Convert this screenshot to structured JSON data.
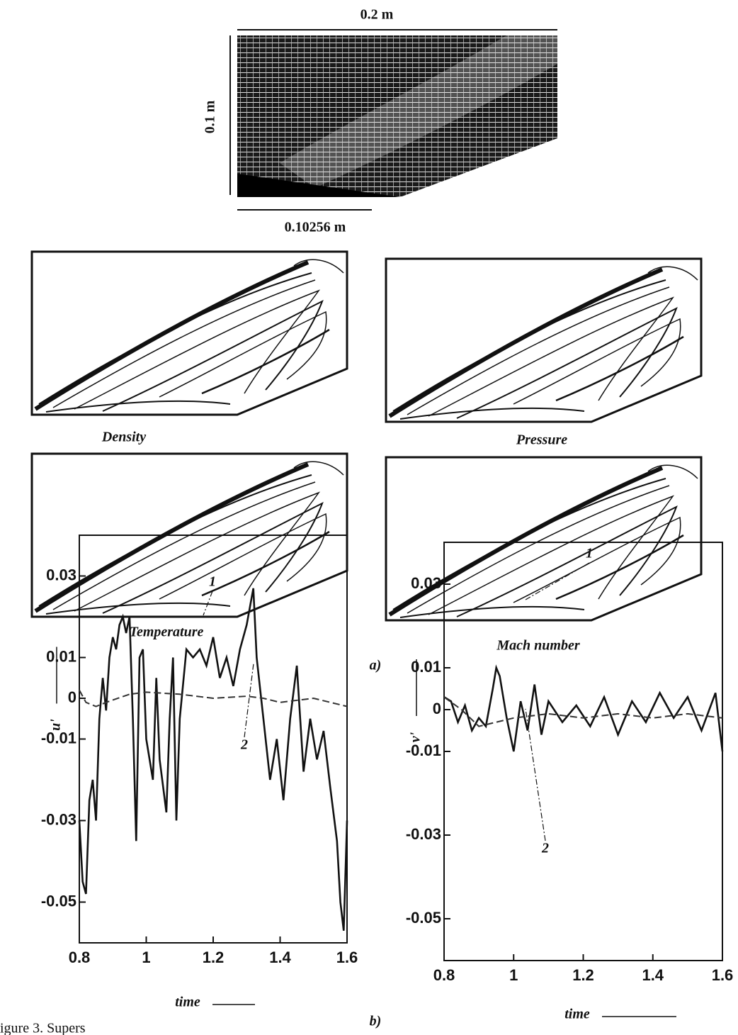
{
  "figure": {
    "mesh_labels": [
      "0.2 m",
      "0.1 m",
      "0.10256 m"
    ],
    "panels": [
      "Density",
      "Pressure",
      "Temperature",
      "Mach number"
    ],
    "part_labels": [
      "a)",
      "b)"
    ],
    "caption": "igure 3.  Supers"
  },
  "chart_data": [
    {
      "type": "line",
      "ylabel": "u'",
      "xlabel": "time",
      "xlim": [
        0.8,
        1.6
      ],
      "xticks": [
        0.8,
        1,
        1.2,
        1.4,
        1.6
      ],
      "ylim": [
        -0.06,
        0.04
      ],
      "yticks": [
        0.03,
        0.01,
        0,
        -0.01,
        -0.03,
        -0.05
      ],
      "annotations": [
        "1",
        "2"
      ],
      "series": [
        {
          "color": "#111111",
          "x": [
            0.8,
            0.81,
            0.82,
            0.83,
            0.84,
            0.85,
            0.86,
            0.87,
            0.88,
            0.89,
            0.9,
            0.91,
            0.92,
            0.93,
            0.94,
            0.95,
            0.96,
            0.97,
            0.98,
            0.99,
            1.0,
            1.02,
            1.03,
            1.04,
            1.06,
            1.07,
            1.08,
            1.09,
            1.1,
            1.12,
            1.14,
            1.16,
            1.18,
            1.2,
            1.22,
            1.24,
            1.26,
            1.28,
            1.3,
            1.32,
            1.33,
            1.35,
            1.37,
            1.39,
            1.41,
            1.43,
            1.45,
            1.47,
            1.49,
            1.51,
            1.53,
            1.55,
            1.57,
            1.58,
            1.59,
            1.6
          ],
          "values": [
            -0.03,
            -0.045,
            -0.048,
            -0.025,
            -0.02,
            -0.03,
            -0.005,
            0.005,
            -0.003,
            0.01,
            0.015,
            0.012,
            0.018,
            0.02,
            0.016,
            0.02,
            -0.005,
            -0.035,
            0.01,
            0.012,
            -0.01,
            -0.02,
            0.005,
            -0.015,
            -0.028,
            -0.005,
            0.01,
            -0.03,
            -0.005,
            0.012,
            0.01,
            0.012,
            0.008,
            0.015,
            0.005,
            0.01,
            0.003,
            0.012,
            0.018,
            0.027,
            0.01,
            -0.005,
            -0.02,
            -0.01,
            -0.025,
            -0.005,
            0.008,
            -0.018,
            -0.005,
            -0.015,
            -0.008,
            -0.022,
            -0.035,
            -0.05,
            -0.057,
            -0.03
          ]
        },
        {
          "color": "#333333",
          "x": [
            0.8,
            0.82,
            0.85,
            0.88,
            0.95,
            1.0,
            1.1,
            1.2,
            1.3,
            1.35,
            1.4,
            1.5,
            1.6
          ],
          "values": [
            0.002,
            -0.001,
            -0.002,
            -0.001,
            0.001,
            0.0015,
            0.001,
            0,
            0.0005,
            0,
            -0.001,
            0,
            -0.002
          ]
        }
      ]
    },
    {
      "type": "line",
      "ylabel": "v'",
      "xlabel": "time",
      "xlim": [
        0.8,
        1.6
      ],
      "xticks": [
        0.8,
        1,
        1.2,
        1.4,
        1.6
      ],
      "ylim": [
        -0.06,
        0.04
      ],
      "yticks": [
        0.03,
        0.01,
        0,
        -0.01,
        -0.03,
        -0.05
      ],
      "annotations": [
        "1",
        "2"
      ],
      "series": [
        {
          "color": "#111111",
          "x": [
            0.8,
            0.82,
            0.84,
            0.86,
            0.88,
            0.9,
            0.92,
            0.94,
            0.95,
            0.96,
            0.98,
            1.0,
            1.02,
            1.04,
            1.06,
            1.08,
            1.1,
            1.14,
            1.18,
            1.22,
            1.26,
            1.3,
            1.34,
            1.38,
            1.42,
            1.46,
            1.5,
            1.54,
            1.58,
            1.6
          ],
          "values": [
            0.003,
            0.002,
            -0.003,
            0.001,
            -0.005,
            -0.002,
            -0.004,
            0.005,
            0.01,
            0.008,
            -0.002,
            -0.01,
            0.002,
            -0.005,
            0.006,
            -0.006,
            0.002,
            -0.003,
            0.001,
            -0.004,
            0.003,
            -0.006,
            0.002,
            -0.003,
            0.004,
            -0.002,
            0.003,
            -0.005,
            0.004,
            -0.01
          ]
        },
        {
          "color": "#333333",
          "x": [
            0.8,
            0.85,
            0.9,
            0.95,
            1.0,
            1.1,
            1.2,
            1.3,
            1.4,
            1.5,
            1.6
          ],
          "values": [
            0.003,
            0,
            -0.004,
            -0.003,
            -0.002,
            -0.001,
            -0.002,
            -0.001,
            -0.002,
            -0.001,
            -0.002
          ]
        }
      ]
    }
  ]
}
